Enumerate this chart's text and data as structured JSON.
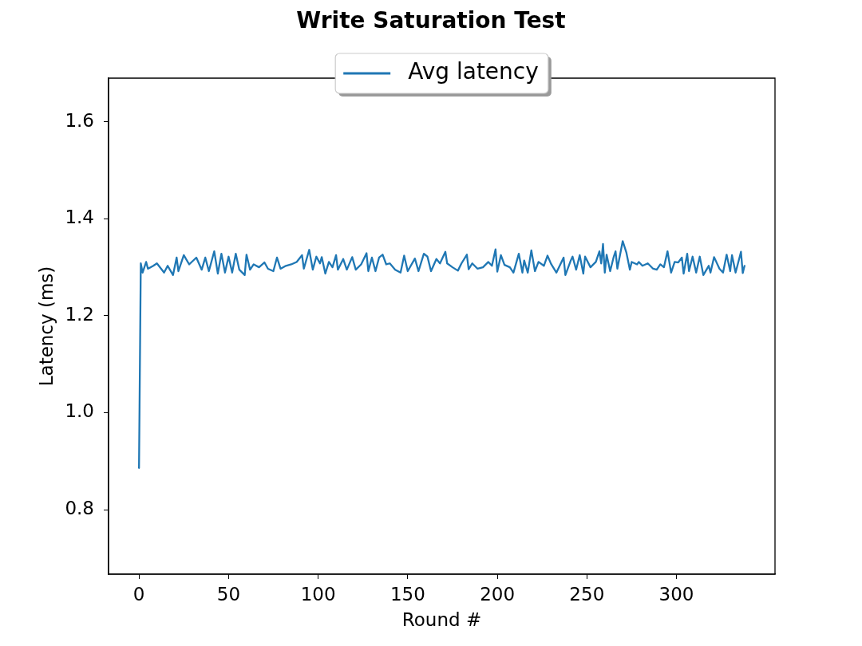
{
  "chart_data": {
    "type": "line",
    "title": "Write Saturation Test",
    "xlabel": "Round #",
    "ylabel": "Latency (ms)",
    "x": [
      0,
      1,
      2,
      4,
      5,
      8,
      10,
      14,
      16,
      19,
      21,
      22,
      25,
      28,
      32,
      35,
      37,
      39,
      42,
      44,
      46,
      48,
      50,
      52,
      54,
      56,
      59,
      60,
      62,
      64,
      67,
      70,
      72,
      75,
      77,
      79,
      82,
      85,
      88,
      91,
      92,
      95,
      97,
      99,
      101,
      102,
      104,
      106,
      108,
      110,
      111,
      114,
      116,
      119,
      121,
      124,
      127,
      128,
      130,
      132,
      134,
      136,
      138,
      140,
      143,
      146,
      148,
      150,
      154,
      156,
      159,
      161,
      163,
      166,
      168,
      171,
      172,
      175,
      178,
      180,
      183,
      184,
      186,
      189,
      192,
      195,
      197,
      199,
      200,
      202,
      204,
      207,
      209,
      212,
      214,
      215,
      217,
      219,
      221,
      223,
      226,
      228,
      230,
      233,
      237,
      238,
      241,
      242,
      244,
      246,
      248,
      249,
      252,
      255,
      257,
      258,
      259,
      260,
      261,
      263,
      265,
      266,
      267,
      270,
      272,
      274,
      275,
      278,
      279,
      281,
      284,
      287,
      289,
      291,
      293,
      295,
      297,
      299,
      301,
      303,
      304,
      306,
      307,
      309,
      311,
      313,
      315,
      318,
      319,
      321,
      324,
      326,
      328,
      330,
      331,
      333,
      334,
      336,
      337,
      338
    ],
    "series": [
      {
        "name": "Avg latency",
        "color": "#1f77b4",
        "values": [
          0.886,
          1.308,
          1.289,
          1.311,
          1.297,
          1.303,
          1.308,
          1.289,
          1.303,
          1.284,
          1.32,
          1.292,
          1.325,
          1.306,
          1.32,
          1.295,
          1.32,
          1.292,
          1.333,
          1.287,
          1.328,
          1.289,
          1.322,
          1.289,
          1.328,
          1.295,
          1.284,
          1.326,
          1.295,
          1.306,
          1.3,
          1.31,
          1.297,
          1.292,
          1.32,
          1.297,
          1.303,
          1.306,
          1.311,
          1.325,
          1.297,
          1.336,
          1.295,
          1.322,
          1.308,
          1.321,
          1.287,
          1.311,
          1.3,
          1.325,
          1.295,
          1.317,
          1.295,
          1.321,
          1.295,
          1.306,
          1.329,
          1.292,
          1.32,
          1.292,
          1.32,
          1.326,
          1.306,
          1.308,
          1.295,
          1.289,
          1.324,
          1.292,
          1.318,
          1.292,
          1.328,
          1.322,
          1.292,
          1.317,
          1.308,
          1.332,
          1.308,
          1.3,
          1.293,
          1.308,
          1.326,
          1.296,
          1.308,
          1.297,
          1.3,
          1.311,
          1.303,
          1.337,
          1.291,
          1.325,
          1.305,
          1.3,
          1.289,
          1.328,
          1.289,
          1.314,
          1.289,
          1.335,
          1.292,
          1.311,
          1.303,
          1.324,
          1.307,
          1.289,
          1.32,
          1.284,
          1.314,
          1.322,
          1.295,
          1.325,
          1.287,
          1.322,
          1.3,
          1.311,
          1.333,
          1.308,
          1.348,
          1.289,
          1.326,
          1.292,
          1.322,
          1.333,
          1.297,
          1.354,
          1.331,
          1.295,
          1.311,
          1.306,
          1.311,
          1.303,
          1.308,
          1.297,
          1.295,
          1.306,
          1.3,
          1.333,
          1.289,
          1.311,
          1.31,
          1.32,
          1.287,
          1.328,
          1.292,
          1.322,
          1.289,
          1.322,
          1.284,
          1.303,
          1.289,
          1.321,
          1.297,
          1.289,
          1.326,
          1.292,
          1.325,
          1.289,
          1.303,
          1.332,
          1.288,
          1.303
        ]
      }
    ],
    "xlim": [
      -17,
      355
    ],
    "xticks": [
      0,
      50,
      100,
      150,
      200,
      250,
      300
    ],
    "ylim": [
      0.667,
      1.69
    ],
    "yticks": [
      0.8,
      {
        "value": 1,
        "label": "1.0"
      },
      1.2,
      1.4,
      1.6
    ],
    "grid": false,
    "legend": "top",
    "marker": "none"
  }
}
